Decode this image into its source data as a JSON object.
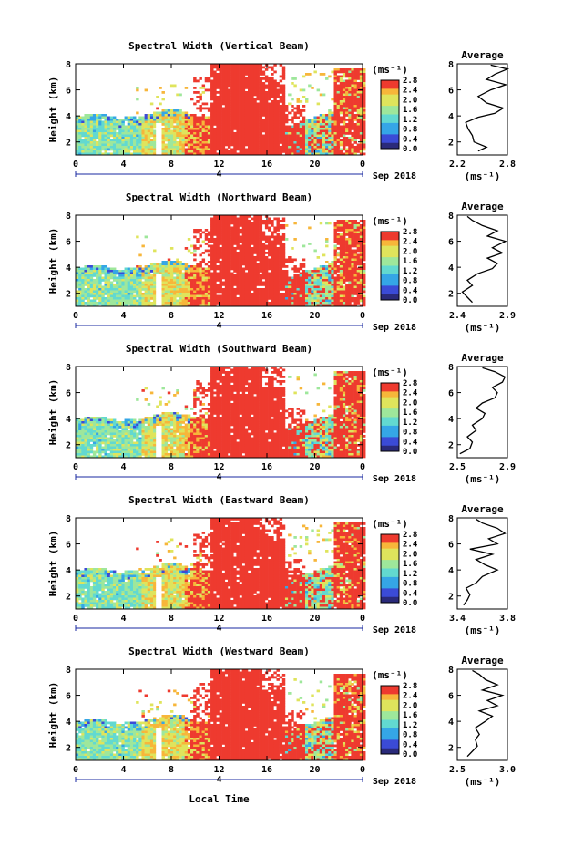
{
  "chart_data": [
    {
      "type": "heatmap",
      "title": "Spectral Width (Vertical Beam)",
      "ylabel": "Height (km)",
      "colorbar_label": "(ms⁻¹)",
      "colorbar_ticks": [
        "0.0",
        "0.4",
        "0.8",
        "1.2",
        "1.6",
        "2.0",
        "2.4",
        "2.8"
      ],
      "colorbar_range": [
        0,
        2.8
      ],
      "x_ticks": [
        "0",
        "4",
        "8",
        "12",
        "16",
        "20",
        "0"
      ],
      "y_ticks": [
        "2",
        "4",
        "6",
        "8"
      ],
      "xlim": [
        0,
        24
      ],
      "ylim": [
        1,
        8
      ],
      "date_label": "Sep 2018",
      "date_marker": "4",
      "profile": {
        "title": "Average",
        "xlabel": "(ms⁻¹)",
        "x_ticks": [
          "2.2",
          "2.8"
        ],
        "xlim": [
          2.2,
          2.8
        ],
        "y_ticks": [
          "2",
          "4",
          "6",
          "8"
        ],
        "ylim": [
          1,
          8
        ],
        "points": [
          [
            2.45,
            1.3
          ],
          [
            2.55,
            1.6
          ],
          [
            2.4,
            2.0
          ],
          [
            2.38,
            2.5
          ],
          [
            2.33,
            3.0
          ],
          [
            2.3,
            3.5
          ],
          [
            2.45,
            3.9
          ],
          [
            2.65,
            4.2
          ],
          [
            2.75,
            4.6
          ],
          [
            2.55,
            5.0
          ],
          [
            2.45,
            5.5
          ],
          [
            2.6,
            6.0
          ],
          [
            2.78,
            6.4
          ],
          [
            2.55,
            6.8
          ],
          [
            2.65,
            7.2
          ],
          [
            2.8,
            7.6
          ],
          [
            2.6,
            7.9
          ]
        ]
      }
    },
    {
      "type": "heatmap",
      "title": "Spectral Width (Northward Beam)",
      "ylabel": "Height (km)",
      "colorbar_label": "(ms⁻¹)",
      "colorbar_ticks": [
        "0.0",
        "0.4",
        "0.8",
        "1.2",
        "1.6",
        "2.0",
        "2.4",
        "2.8"
      ],
      "colorbar_range": [
        0,
        2.8
      ],
      "x_ticks": [
        "0",
        "4",
        "8",
        "12",
        "16",
        "20",
        "0"
      ],
      "y_ticks": [
        "2",
        "4",
        "6",
        "8"
      ],
      "xlim": [
        0,
        24
      ],
      "ylim": [
        1,
        8
      ],
      "date_label": "Sep 2018",
      "date_marker": "4",
      "profile": {
        "title": "Average",
        "xlabel": "(ms⁻¹)",
        "x_ticks": [
          "2.4",
          "2.9"
        ],
        "xlim": [
          2.4,
          2.9
        ],
        "y_ticks": [
          "2",
          "4",
          "6",
          "8"
        ],
        "ylim": [
          1,
          8
        ],
        "points": [
          [
            2.55,
            1.3
          ],
          [
            2.5,
            1.7
          ],
          [
            2.45,
            2.1
          ],
          [
            2.55,
            2.6
          ],
          [
            2.5,
            3.0
          ],
          [
            2.6,
            3.5
          ],
          [
            2.75,
            3.9
          ],
          [
            2.8,
            4.3
          ],
          [
            2.7,
            4.7
          ],
          [
            2.85,
            5.1
          ],
          [
            2.75,
            5.5
          ],
          [
            2.88,
            6.0
          ],
          [
            2.7,
            6.4
          ],
          [
            2.8,
            6.8
          ],
          [
            2.65,
            7.2
          ],
          [
            2.55,
            7.6
          ],
          [
            2.5,
            7.9
          ]
        ]
      }
    },
    {
      "type": "heatmap",
      "title": "Spectral Width (Southward Beam)",
      "ylabel": "Height (km)",
      "colorbar_label": "(ms⁻¹)",
      "colorbar_ticks": [
        "0.0",
        "0.4",
        "0.8",
        "1.2",
        "1.6",
        "2.0",
        "2.4",
        "2.8"
      ],
      "colorbar_range": [
        0,
        2.8
      ],
      "x_ticks": [
        "0",
        "4",
        "8",
        "12",
        "16",
        "20",
        "0"
      ],
      "y_ticks": [
        "2",
        "4",
        "6",
        "8"
      ],
      "xlim": [
        0,
        24
      ],
      "ylim": [
        1,
        8
      ],
      "date_label": "Sep 2018",
      "date_marker": "4",
      "profile": {
        "title": "Average",
        "xlabel": "(ms⁻¹)",
        "x_ticks": [
          "2.5",
          "2.9"
        ],
        "xlim": [
          2.5,
          2.9
        ],
        "y_ticks": [
          "2",
          "4",
          "6",
          "8"
        ],
        "ylim": [
          1,
          8
        ],
        "points": [
          [
            2.52,
            1.3
          ],
          [
            2.6,
            1.7
          ],
          [
            2.62,
            2.2
          ],
          [
            2.58,
            2.6
          ],
          [
            2.65,
            3.1
          ],
          [
            2.62,
            3.5
          ],
          [
            2.7,
            4.0
          ],
          [
            2.72,
            4.4
          ],
          [
            2.65,
            4.8
          ],
          [
            2.7,
            5.2
          ],
          [
            2.8,
            5.6
          ],
          [
            2.82,
            6.0
          ],
          [
            2.78,
            6.4
          ],
          [
            2.86,
            6.8
          ],
          [
            2.88,
            7.2
          ],
          [
            2.8,
            7.6
          ],
          [
            2.7,
            7.9
          ]
        ]
      }
    },
    {
      "type": "heatmap",
      "title": "Spectral Width (Eastward Beam)",
      "ylabel": "Height (km)",
      "colorbar_label": "(ms⁻¹)",
      "colorbar_ticks": [
        "0.0",
        "0.4",
        "0.8",
        "1.2",
        "1.6",
        "2.0",
        "2.4",
        "2.8"
      ],
      "colorbar_range": [
        0,
        2.8
      ],
      "x_ticks": [
        "0",
        "4",
        "8",
        "12",
        "16",
        "20",
        "0"
      ],
      "y_ticks": [
        "2",
        "4",
        "6",
        "8"
      ],
      "xlim": [
        0,
        24
      ],
      "ylim": [
        1,
        8
      ],
      "date_label": "Sep 2018",
      "date_marker": "4",
      "profile": {
        "title": "Average",
        "xlabel": "(ms⁻¹)",
        "x_ticks": [
          "3.4",
          "3.8"
        ],
        "xlim": [
          3.4,
          3.8
        ],
        "y_ticks": [
          "2",
          "4",
          "6",
          "8"
        ],
        "ylim": [
          1,
          8
        ],
        "points": [
          [
            3.45,
            1.3
          ],
          [
            3.48,
            1.7
          ],
          [
            3.5,
            2.1
          ],
          [
            3.47,
            2.6
          ],
          [
            3.55,
            3.0
          ],
          [
            3.6,
            3.5
          ],
          [
            3.72,
            4.0
          ],
          [
            3.62,
            4.4
          ],
          [
            3.55,
            4.8
          ],
          [
            3.68,
            5.2
          ],
          [
            3.5,
            5.6
          ],
          [
            3.72,
            6.0
          ],
          [
            3.65,
            6.4
          ],
          [
            3.78,
            6.8
          ],
          [
            3.72,
            7.2
          ],
          [
            3.6,
            7.6
          ],
          [
            3.55,
            7.9
          ]
        ]
      }
    },
    {
      "type": "heatmap",
      "title": "Spectral Width (Westward Beam)",
      "ylabel": "Height (km)",
      "colorbar_label": "(ms⁻¹)",
      "colorbar_ticks": [
        "0.0",
        "0.4",
        "0.8",
        "1.2",
        "1.6",
        "2.0",
        "2.4",
        "2.8"
      ],
      "colorbar_range": [
        0,
        2.8
      ],
      "x_ticks": [
        "0",
        "4",
        "8",
        "12",
        "16",
        "20",
        "0"
      ],
      "y_ticks": [
        "2",
        "4",
        "6",
        "8"
      ],
      "xlim": [
        0,
        24
      ],
      "ylim": [
        1,
        8
      ],
      "date_label": "Sep 2018",
      "date_marker": "4",
      "profile": {
        "title": "Average",
        "xlabel": "(ms⁻¹)",
        "x_ticks": [
          "2.5",
          "3.0"
        ],
        "xlim": [
          2.5,
          3.0
        ],
        "y_ticks": [
          "2",
          "4",
          "6",
          "8"
        ],
        "ylim": [
          1,
          8
        ],
        "points": [
          [
            2.6,
            1.3
          ],
          [
            2.65,
            1.7
          ],
          [
            2.7,
            2.1
          ],
          [
            2.68,
            2.6
          ],
          [
            2.72,
            3.0
          ],
          [
            2.68,
            3.5
          ],
          [
            2.78,
            4.0
          ],
          [
            2.85,
            4.4
          ],
          [
            2.72,
            4.8
          ],
          [
            2.9,
            5.2
          ],
          [
            2.8,
            5.6
          ],
          [
            2.95,
            6.0
          ],
          [
            2.75,
            6.4
          ],
          [
            2.9,
            6.8
          ],
          [
            2.78,
            7.2
          ],
          [
            2.72,
            7.6
          ],
          [
            2.65,
            7.9
          ]
        ]
      }
    }
  ],
  "xlabel": "Local Time",
  "colors": {
    "red": "#ee3a2f",
    "ramp": [
      "#2a2a7a",
      "#3b4bd6",
      "#35a6e6",
      "#62d9d0",
      "#9ee79b",
      "#dfe45c",
      "#f7b63a",
      "#ee3a2f"
    ]
  }
}
